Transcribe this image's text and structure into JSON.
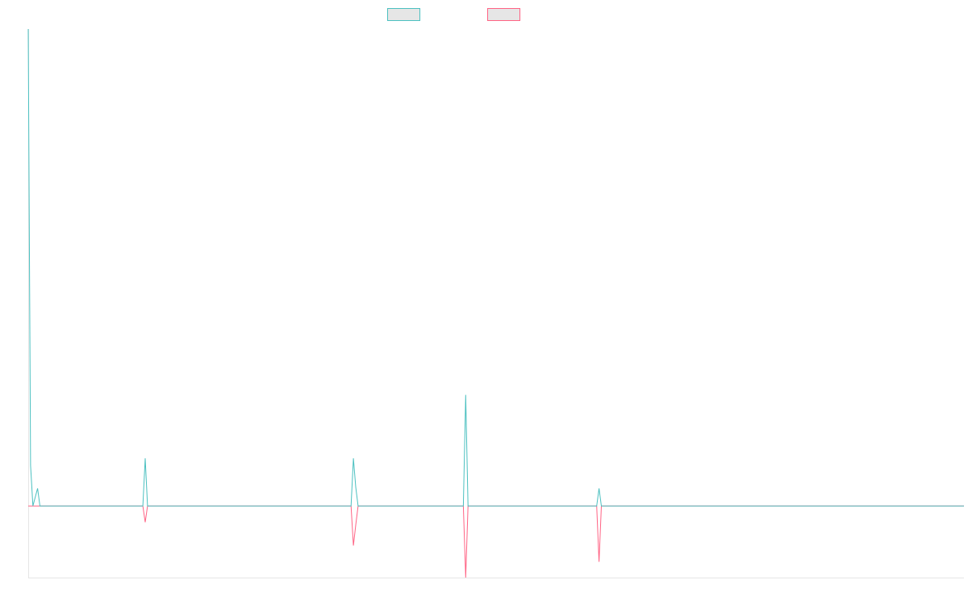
{
  "chart_data": {
    "type": "line",
    "x": [
      0,
      1,
      2,
      4,
      5,
      49,
      50,
      51,
      138,
      139,
      140,
      141,
      186,
      187,
      188,
      243,
      244,
      245,
      400
    ],
    "series": [
      {
        "color": "#4bc0c0",
        "values": [
          100,
          8.5,
          0,
          3.7,
          0,
          0,
          10,
          0,
          0,
          10,
          4,
          0,
          0,
          23.3,
          0,
          0,
          3.7,
          0,
          0
        ]
      },
      {
        "color": "#ff6384",
        "values": [
          0,
          0,
          0,
          0,
          0,
          0,
          -3.4,
          0,
          0,
          -8.3,
          -4,
          0,
          0,
          -15,
          0,
          0,
          -11.7,
          0,
          0
        ]
      }
    ],
    "xlim": [
      0,
      400
    ],
    "ylim": [
      -15,
      100
    ],
    "legend": "top"
  }
}
